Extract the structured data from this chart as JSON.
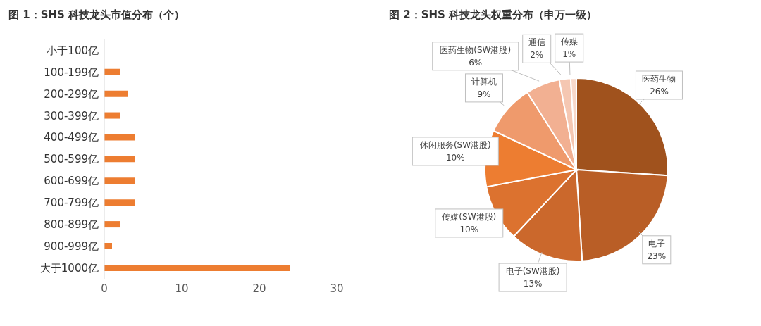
{
  "chart_data": [
    {
      "type": "bar",
      "orientation": "horizontal",
      "title": "图 1：SHS 科技龙头市值分布（个）",
      "categories": [
        "小于100亿",
        "100-199亿",
        "200-299亿",
        "300-399亿",
        "400-499亿",
        "500-599亿",
        "600-699亿",
        "700-799亿",
        "800-899亿",
        "900-999亿",
        "大于1000亿"
      ],
      "values": [
        0,
        2,
        3,
        2,
        4,
        4,
        4,
        4,
        2,
        1,
        24
      ],
      "color": "#ed7d31",
      "xlim": [
        0,
        30
      ],
      "xticks": [
        0,
        10,
        20,
        30
      ]
    },
    {
      "type": "pie",
      "title": "图 2：SHS 科技龙头权重分布（申万一级）",
      "categories": [
        "医药生物",
        "电子",
        "电子(SW港股)",
        "传媒(SW港股)",
        "休闲服务(SW港股)",
        "计算机",
        "医药生物(SW港股)",
        "通信",
        "传媒"
      ],
      "values": [
        26,
        23,
        13,
        10,
        10,
        9,
        6,
        2,
        1
      ],
      "colors": [
        "#a0521d",
        "#b95e26",
        "#cb682c",
        "#dc722f",
        "#ed7d31",
        "#ef9a6c",
        "#f2b092",
        "#f5c7b2",
        "#f8d9cb"
      ],
      "value_labels": [
        "26%",
        "23%",
        "13%",
        "10%",
        "10%",
        "9%",
        "6%",
        "2%",
        "1%"
      ]
    }
  ]
}
